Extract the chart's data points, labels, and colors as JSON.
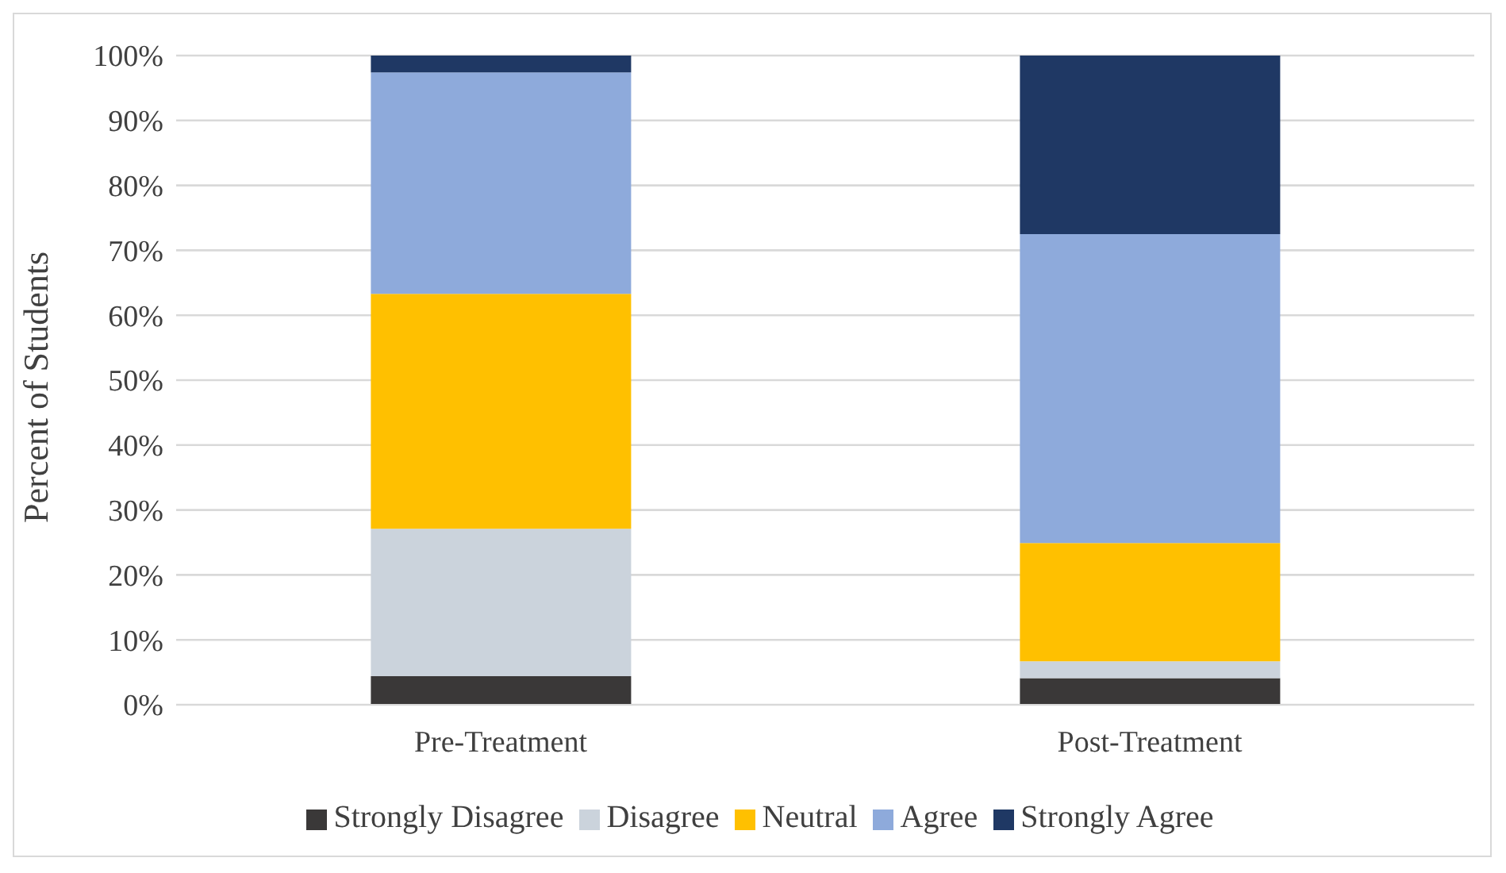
{
  "chart_data": {
    "type": "bar",
    "stacked": true,
    "ylabel": "Percent of Students",
    "categories": [
      "Pre-Treatment",
      "Post-Treatment"
    ],
    "series": [
      {
        "name": "Strongly Disagree",
        "color": "#3a3838",
        "values": [
          4.4,
          4.1
        ]
      },
      {
        "name": "Disagree",
        "color": "#cbd3dc",
        "values": [
          22.7,
          2.6
        ]
      },
      {
        "name": "Neutral",
        "color": "#ffc000",
        "values": [
          36.2,
          18.2
        ]
      },
      {
        "name": "Agree",
        "color": "#8eaadb",
        "values": [
          34.1,
          47.6
        ]
      },
      {
        "name": "Strongly Agree",
        "color": "#1f3864",
        "values": [
          2.6,
          27.5
        ]
      }
    ],
    "ylim": [
      0,
      100
    ],
    "yticks": [
      {
        "value": 0,
        "label": "0%"
      },
      {
        "value": 10,
        "label": "10%"
      },
      {
        "value": 20,
        "label": "20%"
      },
      {
        "value": 30,
        "label": "30%"
      },
      {
        "value": 40,
        "label": "40%"
      },
      {
        "value": 50,
        "label": "50%"
      },
      {
        "value": 60,
        "label": "60%"
      },
      {
        "value": 70,
        "label": "70%"
      },
      {
        "value": 80,
        "label": "80%"
      },
      {
        "value": 90,
        "label": "90%"
      },
      {
        "value": 100,
        "label": "100%"
      }
    ],
    "grid": "y",
    "legend": "bottom"
  }
}
